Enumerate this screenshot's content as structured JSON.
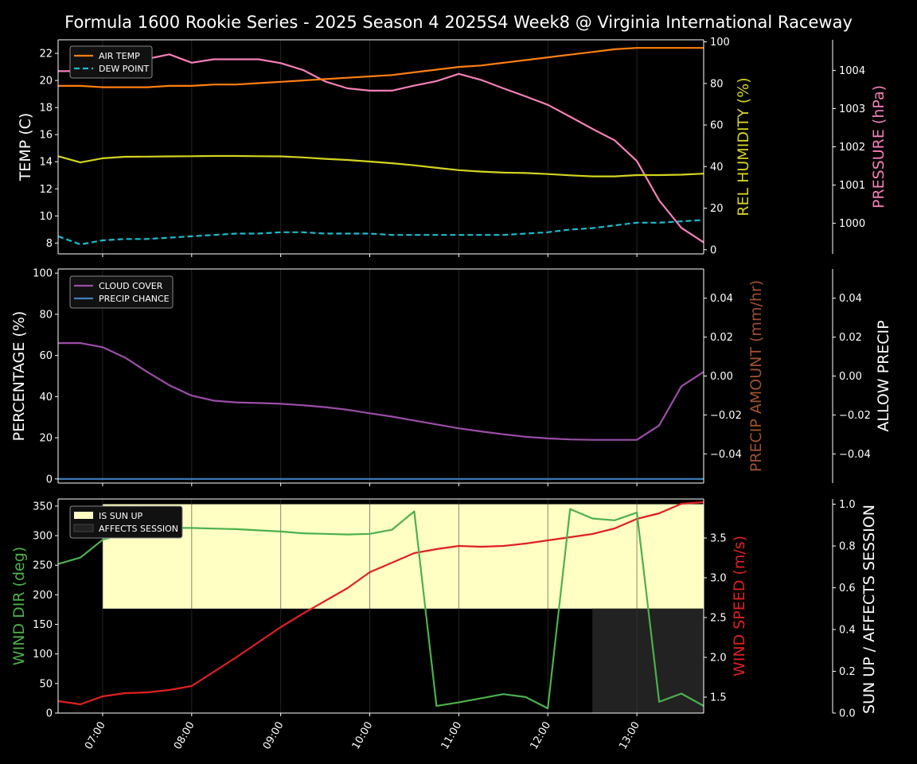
{
  "title": "Formula 1600 Rookie Series - 2025 Season 4 2025S4 Week8 @ Virginia International Raceway",
  "x_ticks": [
    "07:00",
    "08:00",
    "09:00",
    "10:00",
    "11:00",
    "12:00",
    "13:00"
  ],
  "colors": {
    "air_temp": "#ff7f0e",
    "dew_point": "#17becf",
    "humidity": "#d4d41f",
    "pressure": "#f47fb8",
    "cloud": "#9b4da8",
    "precip_chance": "#3f7fbf",
    "precip_amount_label": "#a0522d",
    "wind_dir": "#4cb04c",
    "wind_speed": "#e02020",
    "sun_up": "#ffffc4",
    "affects": "#222222"
  },
  "chart_data": [
    {
      "type": "line",
      "name": "temperature-panel",
      "x_hours": [
        6.5,
        6.75,
        7.0,
        7.25,
        7.5,
        7.75,
        8.0,
        8.25,
        8.5,
        8.75,
        9.0,
        9.25,
        9.5,
        9.75,
        10.0,
        10.25,
        10.5,
        10.75,
        11.0,
        11.25,
        11.5,
        11.75,
        12.0,
        12.25,
        12.5,
        12.75,
        13.0,
        13.25,
        13.5,
        13.75
      ],
      "ylabel": "TEMP (C)",
      "ylim": [
        7.2,
        23.0
      ],
      "yticks": [
        8,
        10,
        12,
        14,
        16,
        18,
        20,
        22
      ],
      "series": [
        {
          "name": "AIR TEMP",
          "axis": "left",
          "values": [
            19.6,
            19.6,
            19.5,
            19.5,
            19.5,
            19.6,
            19.6,
            19.7,
            19.7,
            19.8,
            19.9,
            20.0,
            20.1,
            20.2,
            20.3,
            20.4,
            20.6,
            20.8,
            21.0,
            21.1,
            21.3,
            21.5,
            21.7,
            21.9,
            22.1,
            22.3,
            22.4,
            22.4,
            22.4,
            22.4
          ]
        },
        {
          "name": "DEW POINT",
          "axis": "left",
          "dashed": true,
          "values": [
            8.5,
            7.9,
            8.2,
            8.3,
            8.3,
            8.4,
            8.5,
            8.6,
            8.7,
            8.7,
            8.8,
            8.8,
            8.7,
            8.7,
            8.7,
            8.6,
            8.6,
            8.6,
            8.6,
            8.6,
            8.6,
            8.7,
            8.8,
            9.0,
            9.1,
            9.3,
            9.5,
            9.5,
            9.6,
            9.7
          ]
        },
        {
          "axis": "humidity",
          "values": [
            45,
            42,
            44,
            44.7,
            44.8,
            44.9,
            45,
            45.1,
            45.1,
            45.0,
            44.9,
            44.4,
            43.7,
            43.2,
            42.4,
            41.6,
            40.6,
            39.4,
            38.3,
            37.6,
            37.1,
            36.9,
            36.4,
            35.8,
            35.3,
            35.3,
            35.9,
            35.9,
            36.1,
            36.6
          ]
        },
        {
          "axis": "pressure",
          "values": [
            1003.98,
            1003.98,
            1003.92,
            1004.1,
            1004.3,
            1004.42,
            1004.2,
            1004.29,
            1004.29,
            1004.29,
            1004.19,
            1004.01,
            1003.71,
            1003.53,
            1003.47,
            1003.47,
            1003.6,
            1003.72,
            1003.91,
            1003.75,
            1003.53,
            1003.32,
            1003.1,
            1002.79,
            1002.47,
            1002.17,
            1001.63,
            1000.6,
            999.88,
            999.5
          ]
        }
      ],
      "humidity_axis": {
        "label": "REL HUMIDITY (%)",
        "ylim": [
          -2,
          101
        ],
        "ticks": [
          0,
          20,
          40,
          60,
          80,
          100
        ]
      },
      "pressure_axis": {
        "label": "PRESSURE (hPa)",
        "ylim": [
          999.2,
          1004.8
        ],
        "ticks": [
          1000,
          1001,
          1002,
          1003,
          1004
        ]
      }
    },
    {
      "type": "line",
      "name": "cloud-panel",
      "x_hours": [
        6.5,
        6.75,
        7.0,
        7.25,
        7.5,
        7.75,
        8.0,
        8.25,
        8.5,
        8.75,
        9.0,
        9.25,
        9.5,
        9.75,
        10.0,
        10.25,
        10.5,
        10.75,
        11.0,
        11.25,
        11.5,
        11.75,
        12.0,
        12.25,
        12.5,
        12.75,
        13.0,
        13.25,
        13.5,
        13.75
      ],
      "ylabel": "PERCENTAGE (%)",
      "ylim": [
        -2,
        102
      ],
      "yticks": [
        0,
        20,
        40,
        60,
        80,
        100
      ],
      "series": [
        {
          "name": "CLOUD COVER",
          "values": [
            66,
            66,
            64,
            59,
            52,
            45.5,
            40.5,
            38,
            37.2,
            36.9,
            36.5,
            35.8,
            34.9,
            33.6,
            31.9,
            30.3,
            28.4,
            26.5,
            24.6,
            23.1,
            21.7,
            20.5,
            19.7,
            19.2,
            19.0,
            19.0,
            19.0,
            26,
            45,
            52
          ]
        },
        {
          "name": "PRECIP CHANCE",
          "values": [
            0,
            0,
            0,
            0,
            0,
            0,
            0,
            0,
            0,
            0,
            0,
            0,
            0,
            0,
            0,
            0,
            0,
            0,
            0,
            0,
            0,
            0,
            0,
            0,
            0,
            0,
            0,
            0,
            0,
            0
          ]
        }
      ],
      "precip_axis": {
        "label": "PRECIP AMOUNT (mm/hr)",
        "ylim": [
          -0.055,
          0.055
        ],
        "ticks": [
          "0.04",
          "0.02",
          "0.00",
          "−0.02",
          "−0.04"
        ],
        "tick_values": [
          0.04,
          0.02,
          0.0,
          -0.02,
          -0.04
        ]
      },
      "allow_axis": {
        "label": "ALLOW PRECIP",
        "ylim": [
          -0.055,
          0.055
        ],
        "ticks": [
          "0.04",
          "0.02",
          "0.00",
          "−0.02",
          "−0.04"
        ],
        "tick_values": [
          0.04,
          0.02,
          0.0,
          -0.02,
          -0.04
        ]
      }
    },
    {
      "type": "line",
      "name": "wind-panel",
      "x_hours": [
        6.5,
        6.75,
        7.0,
        7.25,
        7.5,
        7.75,
        8.0,
        8.25,
        8.5,
        8.75,
        9.0,
        9.25,
        9.5,
        9.75,
        10.0,
        10.25,
        10.5,
        10.75,
        11.0,
        11.25,
        11.5,
        11.75,
        12.0,
        12.25,
        12.5,
        12.75,
        13.0,
        13.25,
        13.5,
        13.75
      ],
      "ylabel": "WIND DIR (deg)",
      "ylim": [
        0,
        362
      ],
      "yticks": [
        0,
        50,
        100,
        150,
        200,
        250,
        300,
        350
      ],
      "series": [
        {
          "axis": "dir",
          "values": [
            252,
            263,
            293,
            304,
            310,
            313,
            313,
            312,
            311,
            309,
            307,
            304,
            303,
            302,
            303,
            310,
            341,
            12,
            18,
            25,
            32,
            27,
            8,
            345,
            329,
            326,
            339,
            19,
            33,
            12
          ]
        },
        {
          "axis": "speed",
          "values": [
            1.45,
            1.41,
            1.51,
            1.55,
            1.56,
            1.59,
            1.64,
            1.82,
            2.0,
            2.19,
            2.38,
            2.55,
            2.71,
            2.87,
            3.07,
            3.19,
            3.31,
            3.36,
            3.4,
            3.39,
            3.4,
            3.43,
            3.47,
            3.51,
            3.55,
            3.62,
            3.74,
            3.81,
            3.93,
            3.95
          ]
        }
      ],
      "speed_axis": {
        "label": "WIND SPEED (m/s)",
        "ylim": [
          1.3,
          3.99
        ],
        "ticks": [
          "1.5",
          "2.0",
          "2.5",
          "3.0",
          "3.5"
        ],
        "tick_values": [
          1.5,
          2.0,
          2.5,
          3.0,
          3.5
        ]
      },
      "sun_axis": {
        "label": "SUN UP / AFFECTS SESSION",
        "ylim": [
          0,
          1.025
        ],
        "ticks": [
          "0.0",
          "0.2",
          "0.4",
          "0.6",
          "0.8",
          "1.0"
        ],
        "tick_values": [
          0,
          0.2,
          0.4,
          0.6,
          0.8,
          1.0
        ]
      },
      "bands": [
        {
          "name": "IS SUN UP",
          "x_start": 7.0,
          "x_end": 13.75,
          "y_low": 0.5,
          "y_high": 1.0
        },
        {
          "name": "AFFECTS SESSION",
          "x_start": 12.5,
          "x_end": 13.75,
          "y_low": 0,
          "y_high": 0.5
        }
      ]
    }
  ]
}
